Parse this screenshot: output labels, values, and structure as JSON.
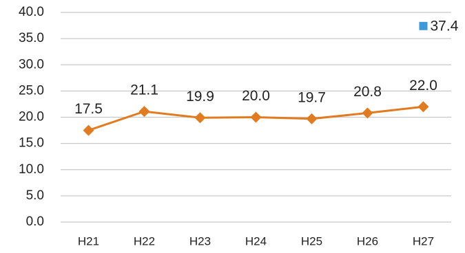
{
  "chart_data": {
    "type": "line",
    "categories": [
      "H21",
      "H22",
      "H23",
      "H24",
      "H25",
      "H26",
      "H27"
    ],
    "series": [
      {
        "color": "#e07b20",
        "marker": "diamond",
        "values": [
          17.5,
          21.1,
          19.9,
          20.0,
          19.7,
          20.8,
          22.0
        ],
        "value_labels": [
          "17.5",
          "21.1",
          "19.9",
          "20.0",
          "19.7",
          "20.8",
          "22.0"
        ]
      },
      {
        "color": "#3a9ad9",
        "marker": "square",
        "values": [
          null,
          null,
          null,
          null,
          null,
          null,
          37.4
        ],
        "value_labels": [
          null,
          null,
          null,
          null,
          null,
          null,
          "37.4"
        ]
      }
    ],
    "ylim": [
      0,
      40
    ],
    "yticks": [
      {
        "value": 0,
        "label": "0.0"
      },
      {
        "value": 5,
        "label": "5.0"
      },
      {
        "value": 10,
        "label": "10.0"
      },
      {
        "value": 15,
        "label": "15.0"
      },
      {
        "value": 20,
        "label": "20.0"
      },
      {
        "value": 25,
        "label": "25.0"
      },
      {
        "value": 30,
        "label": "30.0"
      },
      {
        "value": 35,
        "label": "35.0"
      },
      {
        "value": 40,
        "label": "40.0"
      }
    ],
    "grid": true
  }
}
